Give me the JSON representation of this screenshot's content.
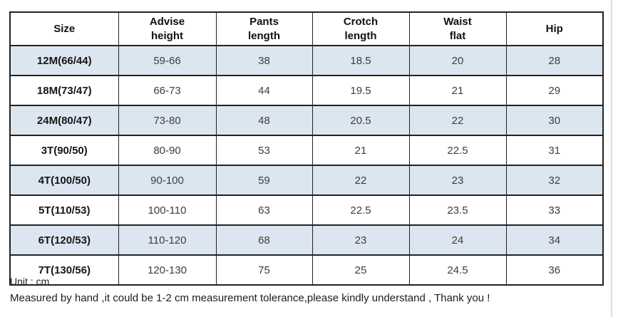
{
  "table": {
    "headers": [
      {
        "line1": "Size",
        "line2": ""
      },
      {
        "line1": "Advise",
        "line2": "height"
      },
      {
        "line1": "Pants",
        "line2": "length"
      },
      {
        "line1": "Crotch",
        "line2": "length"
      },
      {
        "line1": "Waist",
        "line2": "flat"
      },
      {
        "line1": "Hip",
        "line2": ""
      }
    ],
    "rows": [
      [
        "12M(66/44)",
        "59-66",
        "38",
        "18.5",
        "20",
        "28"
      ],
      [
        "18M(73/47)",
        "66-73",
        "44",
        "19.5",
        "21",
        "29"
      ],
      [
        "24M(80/47)",
        "73-80",
        "48",
        "20.5",
        "22",
        "30"
      ],
      [
        "3T(90/50)",
        "80-90",
        "53",
        "21",
        "22.5",
        "31"
      ],
      [
        "4T(100/50)",
        "90-100",
        "59",
        "22",
        "23",
        "32"
      ],
      [
        "5T(110/53)",
        "100-110",
        "63",
        "22.5",
        "23.5",
        "33"
      ],
      [
        "6T(120/53)",
        "110-120",
        "68",
        "23",
        "24",
        "34"
      ],
      [
        "7T(130/56)",
        "120-130",
        "75",
        "25",
        "24.5",
        "36"
      ]
    ]
  },
  "notes": {
    "unit": "Unit : cm",
    "tolerance": "Measured by hand ,it could be 1-2 cm measurement tolerance,please kindly understand , Thank you !"
  },
  "colors": {
    "row_alt_bg": "#dce6f0",
    "grid_border": "#222222",
    "value_text": "#3d3d3d"
  },
  "chart_data": {
    "type": "table",
    "columns": [
      "Size",
      "Advise height",
      "Pants length",
      "Crotch length",
      "Waist flat",
      "Hip"
    ],
    "rows": [
      [
        "12M(66/44)",
        "59-66",
        38,
        18.5,
        20,
        28
      ],
      [
        "18M(73/47)",
        "66-73",
        44,
        19.5,
        21,
        29
      ],
      [
        "24M(80/47)",
        "73-80",
        48,
        20.5,
        22,
        30
      ],
      [
        "3T(90/50)",
        "80-90",
        53,
        21,
        22.5,
        31
      ],
      [
        "4T(100/50)",
        "90-100",
        59,
        22,
        23,
        32
      ],
      [
        "5T(110/53)",
        "100-110",
        63,
        22.5,
        23.5,
        33
      ],
      [
        "6T(120/53)",
        "110-120",
        68,
        23,
        24,
        34
      ],
      [
        "7T(130/56)",
        "120-130",
        75,
        25,
        24.5,
        36
      ]
    ],
    "unit": "cm",
    "layout_hints": {
      "header_bg": "#ffffff",
      "alternating_row_bg": "#dce6f0",
      "grid": true
    }
  }
}
